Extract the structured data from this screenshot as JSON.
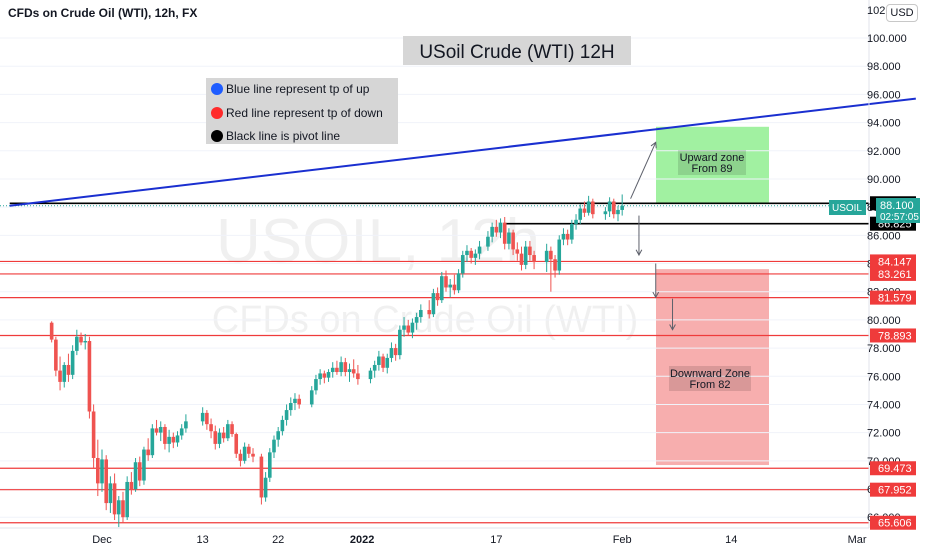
{
  "header": {
    "symbol_title": "CFDs on Crude Oil (WTI), 12h, FX",
    "currency": "USD"
  },
  "chart_title": "USoil Crude (WTI) 12H",
  "watermark": {
    "line1": "USOIL, 12h",
    "line2": "CFDs on Crude Oil (WTI)"
  },
  "legend": [
    {
      "text": "Blue line represent tp of up",
      "dot_color": "#1e5cff"
    },
    {
      "text": "Red line represent tp of down",
      "dot_color": "#ff2b2b"
    },
    {
      "text": "Black line is pivot line",
      "dot_color": "#000000"
    }
  ],
  "zones": [
    {
      "label_line1": "Upward zone",
      "label_line2": "From 89",
      "color": "#90ee90",
      "top": 93.7,
      "bottom": 88.3
    },
    {
      "label_line1": "Downward Zone",
      "label_line2": "From 82",
      "color": "#f6a0a0",
      "top": 83.6,
      "bottom": 69.7
    }
  ],
  "current_price": {
    "symbol": "USOIL",
    "price": "88.100",
    "countdown": "02:57:05",
    "color": "#26a69a"
  },
  "colors": {
    "up": "#26a69a",
    "down": "#ef5350",
    "red_line": "#ef3b3b",
    "blue_line": "#1a2fd0",
    "pivot": "#000000"
  },
  "chart_data": {
    "type": "candlestick",
    "title": "USoil Crude (WTI) 12H",
    "y_axis": {
      "range": [
        65.2,
        101.0
      ],
      "ticks": [
        "100.000",
        "98.000",
        "96.000",
        "94.000",
        "92.000",
        "90.000",
        "88.000",
        "86.000",
        "84.000",
        "82.000",
        "80.000",
        "78.000",
        "76.000",
        "74.000",
        "72.000",
        "70.000",
        "68.000",
        "66.000"
      ],
      "top_label": "102.000"
    },
    "x_axis": {
      "ticks": [
        {
          "label": "Dec",
          "date": "2021-12-01"
        },
        {
          "label": "13",
          "date": "2021-12-13"
        },
        {
          "label": "22",
          "date": "2021-12-22"
        },
        {
          "label": "2022",
          "date": "2022-01-01"
        },
        {
          "label": "17",
          "date": "2022-01-17"
        },
        {
          "label": "Feb",
          "date": "2022-02-01"
        },
        {
          "label": "14",
          "date": "2022-02-14"
        },
        {
          "label": "Mar",
          "date": "2022-03-01"
        }
      ]
    },
    "support_resistance": [
      {
        "label": "84.147",
        "value": 84.147,
        "color": "#ef3b3b"
      },
      {
        "label": "83.261",
        "value": 83.261,
        "color": "#ef3b3b"
      },
      {
        "label": "81.579",
        "value": 81.579,
        "color": "#ef3b3b"
      },
      {
        "label": "78.893",
        "value": 78.893,
        "color": "#ef3b3b"
      },
      {
        "label": "69.473",
        "value": 69.473,
        "color": "#ef3b3b"
      },
      {
        "label": "67.952",
        "value": 67.952,
        "color": "#ef3b3b"
      },
      {
        "label": "65.606",
        "value": 65.606,
        "color": "#ef3b3b"
      }
    ],
    "pivot_lines": [
      {
        "label": "88.274",
        "value": 88.274,
        "start": "2021-11-20"
      },
      {
        "label": "86.825",
        "value": 86.825,
        "start": "2022-01-18"
      }
    ],
    "trendline": {
      "color": "#1a2fd0",
      "points": [
        {
          "date": "2021-11-20",
          "value": 88.1
        },
        {
          "date": "2022-03-08",
          "value": 95.7
        }
      ]
    },
    "arrows": [
      {
        "from": {
          "date": "2022-02-02",
          "value": 88.6
        },
        "to": {
          "date": "2022-02-05",
          "value": 92.6
        }
      },
      {
        "from": {
          "date": "2022-02-03",
          "value": 87.4
        },
        "to": {
          "date": "2022-02-03",
          "value": 84.6
        }
      },
      {
        "from": {
          "date": "2022-02-05",
          "value": 84.0
        },
        "to": {
          "date": "2022-02-05",
          "value": 81.6
        }
      },
      {
        "from": {
          "date": "2022-02-07",
          "value": 81.5
        },
        "to": {
          "date": "2022-02-07",
          "value": 79.3
        }
      }
    ],
    "candles": [
      {
        "date": "2021-11-25",
        "o": 79.8,
        "h": 79.9,
        "l": 78.4,
        "c": 78.6
      },
      {
        "date": "2021-11-25",
        "o": 78.6,
        "h": 78.8,
        "l": 76.0,
        "c": 76.4
      },
      {
        "date": "2021-11-26",
        "o": 76.4,
        "h": 77.4,
        "l": 75.0,
        "c": 75.6
      },
      {
        "date": "2021-11-26",
        "o": 75.6,
        "h": 77.0,
        "l": 75.2,
        "c": 76.8
      },
      {
        "date": "2021-11-27",
        "o": 76.8,
        "h": 77.6,
        "l": 75.6,
        "c": 76.1
      },
      {
        "date": "2021-11-27",
        "o": 76.1,
        "h": 78.2,
        "l": 75.8,
        "c": 77.8
      },
      {
        "date": "2021-11-28",
        "o": 77.8,
        "h": 79.3,
        "l": 77.5,
        "c": 78.8
      },
      {
        "date": "2021-11-28",
        "o": 78.8,
        "h": 79.1,
        "l": 78.2,
        "c": 78.4
      },
      {
        "date": "2021-11-29",
        "o": 78.4,
        "h": 79.0,
        "l": 77.9,
        "c": 78.5
      },
      {
        "date": "2021-11-29",
        "o": 78.5,
        "h": 78.8,
        "l": 73.0,
        "c": 73.5
      },
      {
        "date": "2021-11-30",
        "o": 73.5,
        "h": 74.0,
        "l": 69.5,
        "c": 70.2
      },
      {
        "date": "2021-11-30",
        "o": 70.2,
        "h": 71.5,
        "l": 67.5,
        "c": 68.4
      },
      {
        "date": "2021-12-01",
        "o": 68.4,
        "h": 70.8,
        "l": 67.8,
        "c": 70.1
      },
      {
        "date": "2021-12-01",
        "o": 70.1,
        "h": 70.4,
        "l": 66.5,
        "c": 67.0
      },
      {
        "date": "2021-12-02",
        "o": 67.0,
        "h": 68.9,
        "l": 66.3,
        "c": 68.4
      },
      {
        "date": "2021-12-02",
        "o": 68.4,
        "h": 69.1,
        "l": 65.8,
        "c": 66.2
      },
      {
        "date": "2021-12-03",
        "o": 66.2,
        "h": 67.5,
        "l": 65.3,
        "c": 67.2
      },
      {
        "date": "2021-12-03",
        "o": 67.2,
        "h": 67.8,
        "l": 65.6,
        "c": 66.0
      },
      {
        "date": "2021-12-04",
        "o": 66.0,
        "h": 68.9,
        "l": 65.8,
        "c": 68.5
      },
      {
        "date": "2021-12-04",
        "o": 68.5,
        "h": 69.2,
        "l": 67.6,
        "c": 68.0
      },
      {
        "date": "2021-12-05",
        "o": 68.0,
        "h": 70.2,
        "l": 67.8,
        "c": 69.9
      },
      {
        "date": "2021-12-05",
        "o": 69.9,
        "h": 70.3,
        "l": 68.2,
        "c": 68.6
      },
      {
        "date": "2021-12-06",
        "o": 68.6,
        "h": 71.0,
        "l": 68.3,
        "c": 70.8
      },
      {
        "date": "2021-12-06",
        "o": 70.8,
        "h": 71.6,
        "l": 70.0,
        "c": 70.4
      },
      {
        "date": "2021-12-07",
        "o": 70.4,
        "h": 72.6,
        "l": 70.2,
        "c": 72.3
      },
      {
        "date": "2021-12-07",
        "o": 72.3,
        "h": 72.9,
        "l": 71.8,
        "c": 72.0
      },
      {
        "date": "2021-12-08",
        "o": 72.0,
        "h": 72.8,
        "l": 71.4,
        "c": 72.4
      },
      {
        "date": "2021-12-08",
        "o": 72.4,
        "h": 72.6,
        "l": 70.8,
        "c": 71.2
      },
      {
        "date": "2021-12-09",
        "o": 71.2,
        "h": 72.2,
        "l": 70.6,
        "c": 71.7
      },
      {
        "date": "2021-12-09",
        "o": 71.7,
        "h": 72.0,
        "l": 70.9,
        "c": 71.3
      },
      {
        "date": "2021-12-10",
        "o": 71.3,
        "h": 72.1,
        "l": 71.0,
        "c": 71.8
      },
      {
        "date": "2021-12-10",
        "o": 71.8,
        "h": 72.6,
        "l": 71.5,
        "c": 72.3
      },
      {
        "date": "2021-12-11",
        "o": 72.3,
        "h": 73.3,
        "l": 72.0,
        "c": 72.8
      },
      {
        "date": "2021-12-13",
        "o": 72.8,
        "h": 73.8,
        "l": 72.5,
        "c": 73.4
      },
      {
        "date": "2021-12-13",
        "o": 73.4,
        "h": 73.6,
        "l": 72.2,
        "c": 72.6
      },
      {
        "date": "2021-12-14",
        "o": 72.6,
        "h": 73.0,
        "l": 71.6,
        "c": 72.1
      },
      {
        "date": "2021-12-14",
        "o": 72.1,
        "h": 72.5,
        "l": 70.8,
        "c": 71.2
      },
      {
        "date": "2021-12-15",
        "o": 71.2,
        "h": 72.3,
        "l": 70.9,
        "c": 72.0
      },
      {
        "date": "2021-12-15",
        "o": 72.0,
        "h": 72.4,
        "l": 71.3,
        "c": 71.6
      },
      {
        "date": "2021-12-16",
        "o": 71.6,
        "h": 72.9,
        "l": 71.4,
        "c": 72.6
      },
      {
        "date": "2021-12-16",
        "o": 72.6,
        "h": 72.8,
        "l": 71.7,
        "c": 71.9
      },
      {
        "date": "2021-12-17",
        "o": 71.9,
        "h": 72.0,
        "l": 70.2,
        "c": 70.5
      },
      {
        "date": "2021-12-17",
        "o": 70.5,
        "h": 70.8,
        "l": 69.6,
        "c": 70.0
      },
      {
        "date": "2021-12-18",
        "o": 70.0,
        "h": 71.3,
        "l": 69.8,
        "c": 71.0
      },
      {
        "date": "2021-12-18",
        "o": 71.0,
        "h": 71.2,
        "l": 70.2,
        "c": 70.5
      },
      {
        "date": "2021-12-19",
        "o": 70.5,
        "h": 70.9,
        "l": 69.9,
        "c": 70.3
      },
      {
        "date": "2021-12-20",
        "o": 70.3,
        "h": 70.5,
        "l": 66.9,
        "c": 67.4
      },
      {
        "date": "2021-12-20",
        "o": 67.4,
        "h": 69.2,
        "l": 67.1,
        "c": 68.8
      },
      {
        "date": "2021-12-21",
        "o": 68.8,
        "h": 70.9,
        "l": 68.5,
        "c": 70.6
      },
      {
        "date": "2021-12-21",
        "o": 70.6,
        "h": 71.8,
        "l": 70.2,
        "c": 71.5
      },
      {
        "date": "2021-12-22",
        "o": 71.5,
        "h": 72.4,
        "l": 71.0,
        "c": 72.1
      },
      {
        "date": "2021-12-22",
        "o": 72.1,
        "h": 73.2,
        "l": 71.8,
        "c": 72.9
      },
      {
        "date": "2021-12-23",
        "o": 72.9,
        "h": 74.0,
        "l": 72.5,
        "c": 73.6
      },
      {
        "date": "2021-12-23",
        "o": 73.6,
        "h": 74.5,
        "l": 73.2,
        "c": 74.1
      },
      {
        "date": "2021-12-24",
        "o": 74.1,
        "h": 74.8,
        "l": 73.6,
        "c": 74.4
      },
      {
        "date": "2021-12-24",
        "o": 74.4,
        "h": 74.7,
        "l": 73.7,
        "c": 74.0
      },
      {
        "date": "2021-12-26",
        "o": 74.0,
        "h": 75.3,
        "l": 73.8,
        "c": 75.0
      },
      {
        "date": "2021-12-26",
        "o": 75.0,
        "h": 76.1,
        "l": 74.7,
        "c": 75.8
      },
      {
        "date": "2021-12-27",
        "o": 75.8,
        "h": 76.5,
        "l": 75.4,
        "c": 76.2
      },
      {
        "date": "2021-12-27",
        "o": 76.2,
        "h": 76.4,
        "l": 75.5,
        "c": 75.9
      },
      {
        "date": "2021-12-28",
        "o": 75.9,
        "h": 76.5,
        "l": 75.6,
        "c": 76.3
      },
      {
        "date": "2021-12-28",
        "o": 76.3,
        "h": 77.0,
        "l": 75.9,
        "c": 76.6
      },
      {
        "date": "2021-12-29",
        "o": 76.6,
        "h": 77.1,
        "l": 76.1,
        "c": 76.3
      },
      {
        "date": "2021-12-29",
        "o": 76.3,
        "h": 77.4,
        "l": 76.0,
        "c": 77.0
      },
      {
        "date": "2021-12-30",
        "o": 77.0,
        "h": 77.3,
        "l": 76.0,
        "c": 76.3
      },
      {
        "date": "2021-12-30",
        "o": 76.3,
        "h": 76.9,
        "l": 75.6,
        "c": 76.5
      },
      {
        "date": "2021-12-31",
        "o": 76.5,
        "h": 77.2,
        "l": 75.9,
        "c": 76.2
      },
      {
        "date": "2021-12-31",
        "o": 76.2,
        "h": 76.8,
        "l": 75.4,
        "c": 75.8
      },
      {
        "date": "2022-01-02",
        "o": 75.8,
        "h": 76.6,
        "l": 75.5,
        "c": 76.4
      },
      {
        "date": "2022-01-02",
        "o": 76.4,
        "h": 77.1,
        "l": 75.9,
        "c": 76.8
      },
      {
        "date": "2022-01-03",
        "o": 76.8,
        "h": 77.8,
        "l": 76.4,
        "c": 77.4
      },
      {
        "date": "2022-01-03",
        "o": 77.4,
        "h": 77.6,
        "l": 76.3,
        "c": 76.6
      },
      {
        "date": "2022-01-04",
        "o": 76.6,
        "h": 77.6,
        "l": 76.2,
        "c": 77.3
      },
      {
        "date": "2022-01-04",
        "o": 77.3,
        "h": 78.4,
        "l": 77.0,
        "c": 78.0
      },
      {
        "date": "2022-01-05",
        "o": 78.0,
        "h": 78.3,
        "l": 77.1,
        "c": 77.5
      },
      {
        "date": "2022-01-05",
        "o": 77.5,
        "h": 79.6,
        "l": 77.2,
        "c": 79.3
      },
      {
        "date": "2022-01-06",
        "o": 79.3,
        "h": 80.2,
        "l": 78.8,
        "c": 79.6
      },
      {
        "date": "2022-01-06",
        "o": 79.6,
        "h": 80.0,
        "l": 78.9,
        "c": 79.1
      },
      {
        "date": "2022-01-07",
        "o": 79.1,
        "h": 80.1,
        "l": 78.7,
        "c": 79.8
      },
      {
        "date": "2022-01-07",
        "o": 79.8,
        "h": 80.5,
        "l": 79.3,
        "c": 80.2
      },
      {
        "date": "2022-01-08",
        "o": 80.2,
        "h": 81.1,
        "l": 79.8,
        "c": 80.7
      },
      {
        "date": "2022-01-09",
        "o": 80.7,
        "h": 81.4,
        "l": 80.1,
        "c": 80.4
      },
      {
        "date": "2022-01-09",
        "o": 80.4,
        "h": 82.2,
        "l": 80.2,
        "c": 81.9
      },
      {
        "date": "2022-01-10",
        "o": 81.9,
        "h": 82.3,
        "l": 81.0,
        "c": 81.4
      },
      {
        "date": "2022-01-10",
        "o": 81.4,
        "h": 83.4,
        "l": 81.2,
        "c": 83.1
      },
      {
        "date": "2022-01-11",
        "o": 83.1,
        "h": 83.5,
        "l": 82.0,
        "c": 82.3
      },
      {
        "date": "2022-01-11",
        "o": 82.3,
        "h": 82.9,
        "l": 81.6,
        "c": 82.5
      },
      {
        "date": "2022-01-12",
        "o": 82.5,
        "h": 83.2,
        "l": 81.8,
        "c": 82.1
      },
      {
        "date": "2022-01-12",
        "o": 82.1,
        "h": 83.6,
        "l": 81.9,
        "c": 83.3
      },
      {
        "date": "2022-01-13",
        "o": 83.3,
        "h": 84.9,
        "l": 83.0,
        "c": 84.6
      },
      {
        "date": "2022-01-13",
        "o": 84.6,
        "h": 85.3,
        "l": 84.1,
        "c": 84.9
      },
      {
        "date": "2022-01-14",
        "o": 84.9,
        "h": 85.1,
        "l": 84.0,
        "c": 84.4
      },
      {
        "date": "2022-01-14",
        "o": 84.4,
        "h": 85.0,
        "l": 83.9,
        "c": 84.7
      },
      {
        "date": "2022-01-15",
        "o": 84.7,
        "h": 85.6,
        "l": 84.3,
        "c": 85.2
      },
      {
        "date": "2022-01-16",
        "o": 85.2,
        "h": 86.3,
        "l": 84.9,
        "c": 85.9
      },
      {
        "date": "2022-01-16",
        "o": 85.9,
        "h": 86.9,
        "l": 85.5,
        "c": 86.6
      },
      {
        "date": "2022-01-17",
        "o": 86.6,
        "h": 87.1,
        "l": 85.9,
        "c": 86.2
      },
      {
        "date": "2022-01-17",
        "o": 86.2,
        "h": 87.2,
        "l": 85.8,
        "c": 86.9
      },
      {
        "date": "2022-01-18",
        "o": 86.9,
        "h": 87.3,
        "l": 85.0,
        "c": 85.4
      },
      {
        "date": "2022-01-18",
        "o": 85.4,
        "h": 86.5,
        "l": 85.0,
        "c": 86.2
      },
      {
        "date": "2022-01-19",
        "o": 86.2,
        "h": 86.4,
        "l": 84.6,
        "c": 85.0
      },
      {
        "date": "2022-01-19",
        "o": 85.0,
        "h": 85.5,
        "l": 84.2,
        "c": 84.7
      },
      {
        "date": "2022-01-20",
        "o": 84.7,
        "h": 85.2,
        "l": 83.5,
        "c": 83.9
      },
      {
        "date": "2022-01-20",
        "o": 83.9,
        "h": 85.6,
        "l": 83.6,
        "c": 85.2
      },
      {
        "date": "2022-01-21",
        "o": 85.2,
        "h": 85.6,
        "l": 84.2,
        "c": 84.6
      },
      {
        "date": "2022-01-21",
        "o": 84.6,
        "h": 84.9,
        "l": 83.6,
        "c": 84.1
      },
      {
        "date": "2022-01-23",
        "o": 84.1,
        "h": 85.4,
        "l": 83.4,
        "c": 84.9
      },
      {
        "date": "2022-01-23",
        "o": 84.9,
        "h": 85.2,
        "l": 82.0,
        "c": 84.3
      },
      {
        "date": "2022-01-24",
        "o": 84.3,
        "h": 84.6,
        "l": 83.0,
        "c": 83.5
      },
      {
        "date": "2022-01-24",
        "o": 83.5,
        "h": 86.0,
        "l": 83.2,
        "c": 85.7
      },
      {
        "date": "2022-01-25",
        "o": 85.7,
        "h": 86.5,
        "l": 85.3,
        "c": 86.1
      },
      {
        "date": "2022-01-25",
        "o": 86.1,
        "h": 86.4,
        "l": 85.3,
        "c": 85.7
      },
      {
        "date": "2022-01-26",
        "o": 85.7,
        "h": 87.1,
        "l": 85.4,
        "c": 86.8
      },
      {
        "date": "2022-01-26",
        "o": 86.8,
        "h": 87.5,
        "l": 86.4,
        "c": 87.1
      },
      {
        "date": "2022-01-27",
        "o": 87.1,
        "h": 88.2,
        "l": 86.8,
        "c": 87.9
      },
      {
        "date": "2022-01-27",
        "o": 87.9,
        "h": 88.4,
        "l": 87.3,
        "c": 87.6
      },
      {
        "date": "2022-01-28",
        "o": 87.6,
        "h": 88.8,
        "l": 87.4,
        "c": 88.4
      },
      {
        "date": "2022-01-28",
        "o": 88.4,
        "h": 88.6,
        "l": 87.2,
        "c": 87.5
      },
      {
        "date": "2022-01-30",
        "o": 87.5,
        "h": 88.0,
        "l": 87.1,
        "c": 87.7
      },
      {
        "date": "2022-01-30",
        "o": 87.7,
        "h": 88.7,
        "l": 87.3,
        "c": 88.4
      },
      {
        "date": "2022-01-31",
        "o": 88.4,
        "h": 88.6,
        "l": 87.2,
        "c": 87.5
      },
      {
        "date": "2022-01-31",
        "o": 87.5,
        "h": 88.1,
        "l": 87.0,
        "c": 87.8
      },
      {
        "date": "2022-02-01",
        "o": 87.8,
        "h": 88.9,
        "l": 87.4,
        "c": 88.1
      }
    ]
  }
}
